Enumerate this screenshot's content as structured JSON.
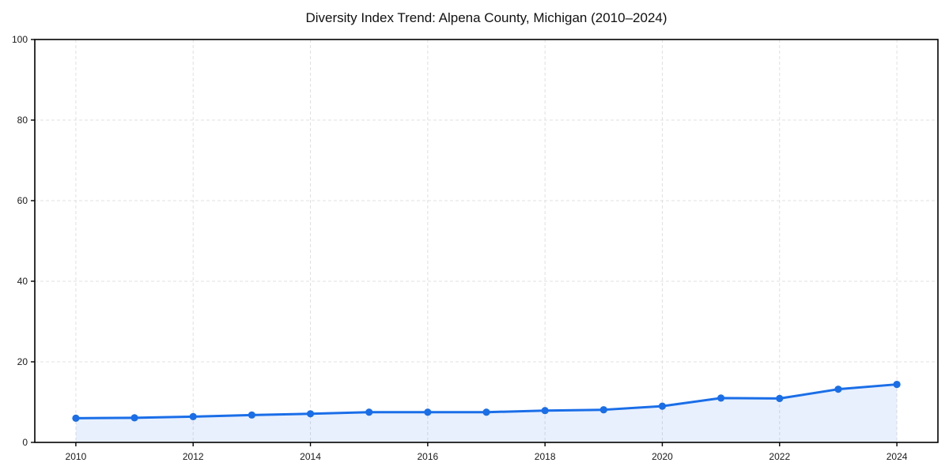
{
  "page": {
    "background": "#ffffff"
  },
  "chart_data": {
    "type": "area",
    "title": "Diversity Index Trend: Alpena County, Michigan (2010–2024)",
    "x": [
      2010,
      2011,
      2012,
      2013,
      2014,
      2015,
      2016,
      2017,
      2018,
      2019,
      2020,
      2021,
      2022,
      2023,
      2024
    ],
    "series": [
      {
        "name": "Diversity Index",
        "values": [
          6.0,
          6.1,
          6.4,
          6.8,
          7.1,
          7.5,
          7.5,
          7.5,
          7.9,
          8.1,
          9.0,
          11.0,
          10.9,
          13.2,
          14.4
        ]
      }
    ],
    "xlabel": "",
    "ylabel": "",
    "ylim": [
      0,
      100
    ],
    "yticks": [
      0,
      20,
      40,
      60,
      80,
      100
    ],
    "xticks": [
      2010,
      2012,
      2014,
      2016,
      2018,
      2020,
      2022,
      2024
    ],
    "grid": true,
    "grid_style": "dashed",
    "legend": "none",
    "colors": {
      "line": "#1a6ee8",
      "marker": "#1a6ee8",
      "fill": "#1a6ee8",
      "fill_opacity": 0.1,
      "grid": "#e0e0e0",
      "spine": "#000000",
      "tick_label": "#1a1a1a",
      "title": "#111111"
    }
  }
}
